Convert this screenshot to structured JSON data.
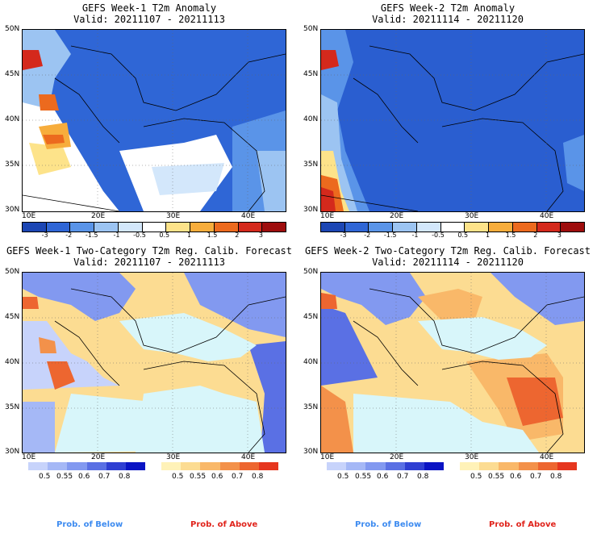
{
  "panels": [
    {
      "title1": "GEFS Week-1 T2m Anomaly",
      "title2": "Valid: 20211107 - 20211113"
    },
    {
      "title1": "GEFS Week-2 T2m Anomaly",
      "title2": "Valid: 20211114 - 20211120"
    },
    {
      "title1": "GEFS Week-1 Two-Category T2m Reg. Calib. Forecast",
      "title2": "Valid: 20211107 - 20211113"
    },
    {
      "title1": "GEFS Week-2 Two-Category T2m Reg. Calib. Forecast",
      "title2": "Valid: 20211114 - 20211120"
    }
  ],
  "axes": {
    "lat_labels": [
      "50N",
      "45N",
      "40N",
      "35N",
      "30N"
    ],
    "lon_labels": [
      "10E",
      "20E",
      "30E",
      "40E"
    ]
  },
  "anomaly_colorbar": {
    "labels": [
      "-3",
      "-2",
      "-1.5",
      "-1",
      "-0.5",
      "0.5",
      "1",
      "1.5",
      "2",
      "3"
    ],
    "colors": [
      "#1c46b4",
      "#2f66d6",
      "#5a94e8",
      "#9cc4f2",
      "#d3e7fb",
      "#ffffff",
      "#fde38a",
      "#f7ad3c",
      "#ec6a1e",
      "#d4291c",
      "#9e0d0d"
    ]
  },
  "prob_below": {
    "labels": [
      "0.5",
      "0.55",
      "0.6",
      "0.7",
      "0.8"
    ],
    "colors": [
      "#c7d3fb",
      "#a5b8f6",
      "#8299f0",
      "#5a70e4",
      "#2f3fd2",
      "#0a14c4"
    ],
    "caption": "Prob. of Below",
    "caption_color": "#3d8bf0"
  },
  "prob_above": {
    "labels": [
      "0.5",
      "0.55",
      "0.6",
      "0.7",
      "0.8"
    ],
    "colors": [
      "#fff2b8",
      "#fcdc92",
      "#f9b869",
      "#f3914a",
      "#ed6630",
      "#e6361e"
    ],
    "caption": "Prob. of Above",
    "caption_color": "#e0241c"
  },
  "map_colors": {
    "sea_light": "#d8f6fa",
    "mostly_blue": "#3a72dc",
    "medium_blue": "#2a5ed0"
  }
}
